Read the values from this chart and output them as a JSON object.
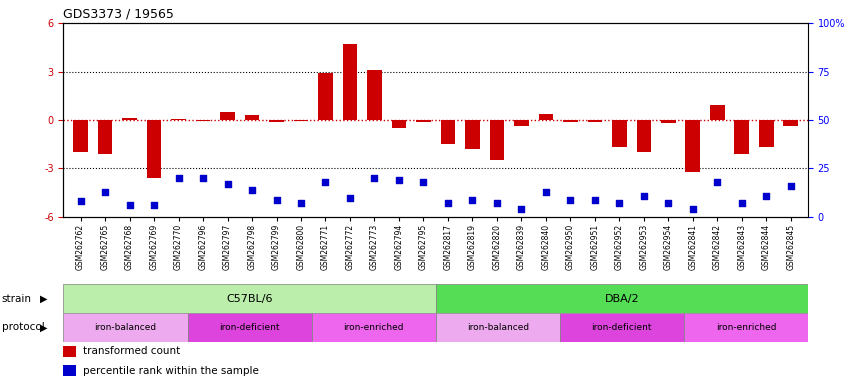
{
  "title": "GDS3373 / 19565",
  "samples": [
    "GSM262762",
    "GSM262765",
    "GSM262768",
    "GSM262769",
    "GSM262770",
    "GSM262796",
    "GSM262797",
    "GSM262798",
    "GSM262799",
    "GSM262800",
    "GSM262771",
    "GSM262772",
    "GSM262773",
    "GSM262794",
    "GSM262795",
    "GSM262817",
    "GSM262819",
    "GSM262820",
    "GSM262839",
    "GSM262840",
    "GSM262950",
    "GSM262951",
    "GSM262952",
    "GSM262953",
    "GSM262954",
    "GSM262841",
    "GSM262842",
    "GSM262843",
    "GSM262844",
    "GSM262845"
  ],
  "transformed_count": [
    -2.0,
    -2.1,
    0.1,
    -3.6,
    0.05,
    -0.05,
    0.5,
    0.3,
    -0.1,
    -0.05,
    2.9,
    4.7,
    3.1,
    -0.5,
    -0.1,
    -1.5,
    -1.8,
    -2.5,
    -0.4,
    0.4,
    -0.1,
    -0.1,
    -1.7,
    -2.0,
    -0.2,
    -3.2,
    0.9,
    -2.1,
    -1.7,
    -0.4
  ],
  "percentile_rank": [
    8,
    13,
    6,
    6,
    20,
    20,
    17,
    14,
    9,
    7,
    18,
    10,
    20,
    19,
    18,
    7,
    9,
    7,
    4,
    13,
    9,
    9,
    7,
    11,
    7,
    4,
    18,
    7,
    11,
    16
  ],
  "ylim_left": [
    -6,
    6
  ],
  "ylim_right": [
    0,
    100
  ],
  "yticks_left": [
    -6,
    -3,
    0,
    3,
    6
  ],
  "ytick_labels_right": [
    "0",
    "25",
    "50",
    "75",
    "100%"
  ],
  "bar_color": "#CC0000",
  "dot_color": "#0000CC",
  "strain_labels": [
    "C57BL/6",
    "DBA/2"
  ],
  "strain_color_c57": "#BBEEAA",
  "strain_color_dba": "#55DD55",
  "protocol_groups": [
    {
      "label": "iron-balanced",
      "span": [
        0,
        5
      ]
    },
    {
      "label": "iron-deficient",
      "span": [
        5,
        10
      ]
    },
    {
      "label": "iron-enriched",
      "span": [
        10,
        15
      ]
    },
    {
      "label": "iron-balanced",
      "span": [
        15,
        20
      ]
    },
    {
      "label": "iron-deficient",
      "span": [
        20,
        25
      ]
    },
    {
      "label": "iron-enriched",
      "span": [
        25,
        30
      ]
    }
  ],
  "protocol_color_balanced": "#EEAAEE",
  "protocol_color_deficient": "#DD44DD",
  "protocol_color_enriched": "#EE66EE"
}
